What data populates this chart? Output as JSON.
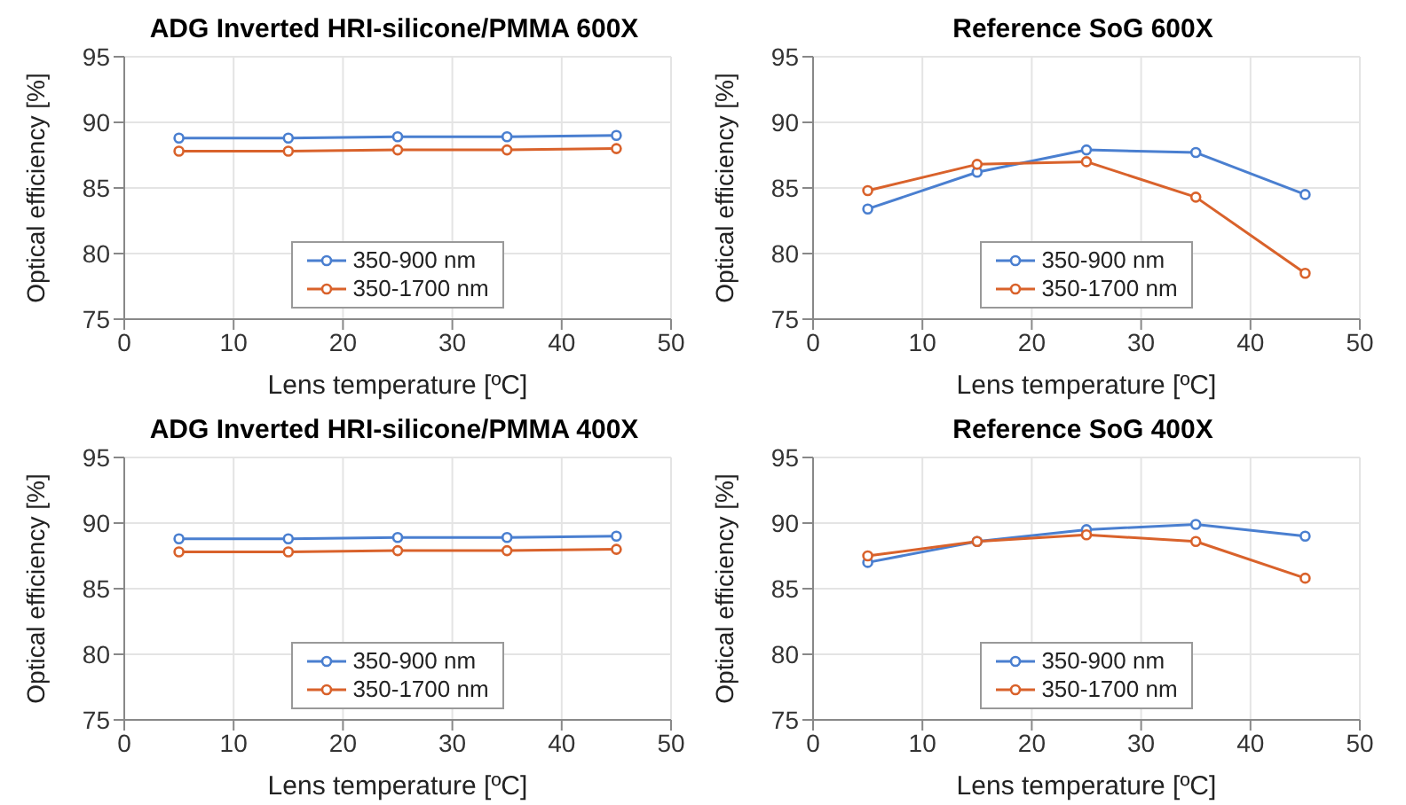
{
  "chart_data": [
    {
      "type": "line",
      "title": "ADG Inverted HRI-silicone/PMMA 600X",
      "xlabel": "Lens temperature [ºC]",
      "ylabel": "Optical efficiency [%]",
      "x": [
        5,
        15,
        25,
        35,
        45
      ],
      "series": [
        {
          "name": "350-900 nm",
          "color": "#4a7fd0",
          "values": [
            88.8,
            88.8,
            88.9,
            88.9,
            89.0
          ]
        },
        {
          "name": "350-1700 nm",
          "color": "#d9622b",
          "values": [
            87.8,
            87.8,
            87.9,
            87.9,
            88.0
          ]
        }
      ],
      "xlim": [
        0,
        50
      ],
      "xticks": [
        0,
        10,
        20,
        30,
        40,
        50
      ],
      "ylim": [
        75,
        95
      ],
      "yticks": [
        75,
        80,
        85,
        90,
        95
      ],
      "grid": true,
      "legend": "bottom",
      "marker": "circle",
      "line_style": "solid"
    },
    {
      "type": "line",
      "title": "Reference SoG 600X",
      "xlabel": "Lens temperature [ºC]",
      "ylabel": "Optical efficiency [%]",
      "x": [
        5,
        15,
        25,
        35,
        45
      ],
      "series": [
        {
          "name": "350-900 nm",
          "color": "#4a7fd0",
          "values": [
            83.4,
            86.2,
            87.9,
            87.7,
            84.5
          ]
        },
        {
          "name": "350-1700 nm",
          "color": "#d9622b",
          "values": [
            84.8,
            86.8,
            87.0,
            84.3,
            78.5
          ]
        }
      ],
      "xlim": [
        0,
        50
      ],
      "xticks": [
        0,
        10,
        20,
        30,
        40,
        50
      ],
      "ylim": [
        75,
        95
      ],
      "yticks": [
        75,
        80,
        85,
        90,
        95
      ],
      "grid": true,
      "legend": "bottom",
      "marker": "circle",
      "line_style": "solid"
    },
    {
      "type": "line",
      "title": "ADG Inverted HRI-silicone/PMMA 400X",
      "xlabel": "Lens temperature [ºC]",
      "ylabel": "Optical efficiency [%]",
      "x": [
        5,
        15,
        25,
        35,
        45
      ],
      "series": [
        {
          "name": "350-900 nm",
          "color": "#4a7fd0",
          "values": [
            88.8,
            88.8,
            88.9,
            88.9,
            89.0
          ]
        },
        {
          "name": "350-1700 nm",
          "color": "#d9622b",
          "values": [
            87.8,
            87.8,
            87.9,
            87.9,
            88.0
          ]
        }
      ],
      "xlim": [
        0,
        50
      ],
      "xticks": [
        0,
        10,
        20,
        30,
        40,
        50
      ],
      "ylim": [
        75,
        95
      ],
      "yticks": [
        75,
        80,
        85,
        90,
        95
      ],
      "grid": true,
      "legend": "bottom",
      "marker": "circle",
      "line_style": "solid"
    },
    {
      "type": "line",
      "title": "Reference SoG 400X",
      "xlabel": "Lens temperature [ºC]",
      "ylabel": "Optical efficiency [%]",
      "x": [
        5,
        15,
        25,
        35,
        45
      ],
      "series": [
        {
          "name": "350-900 nm",
          "color": "#4a7fd0",
          "values": [
            87.0,
            88.6,
            89.5,
            89.9,
            89.0
          ]
        },
        {
          "name": "350-1700 nm",
          "color": "#d9622b",
          "values": [
            87.5,
            88.6,
            89.1,
            88.6,
            85.8
          ]
        }
      ],
      "xlim": [
        0,
        50
      ],
      "xticks": [
        0,
        10,
        20,
        30,
        40,
        50
      ],
      "ylim": [
        75,
        95
      ],
      "yticks": [
        75,
        80,
        85,
        90,
        95
      ],
      "grid": true,
      "legend": "bottom",
      "marker": "circle",
      "line_style": "solid"
    }
  ]
}
